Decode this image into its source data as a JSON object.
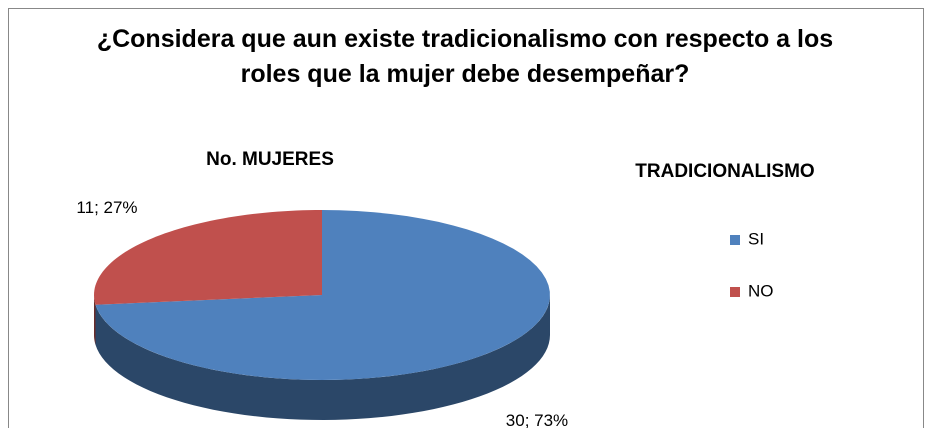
{
  "chart_data": {
    "type": "pie",
    "title": "¿Considera que aun existe tradicionalismo con respecto a los roles que la mujer debe desempeñar?",
    "subtitle": "No. MUJERES",
    "legend_title": "TRADICIONALISMO",
    "categories": [
      "SI",
      "NO"
    ],
    "values": [
      30,
      11
    ],
    "value_labels": [
      "30; 73%",
      "11; 27%"
    ],
    "colors": [
      "#4f81bd",
      "#c0504d"
    ],
    "legend": "right"
  }
}
